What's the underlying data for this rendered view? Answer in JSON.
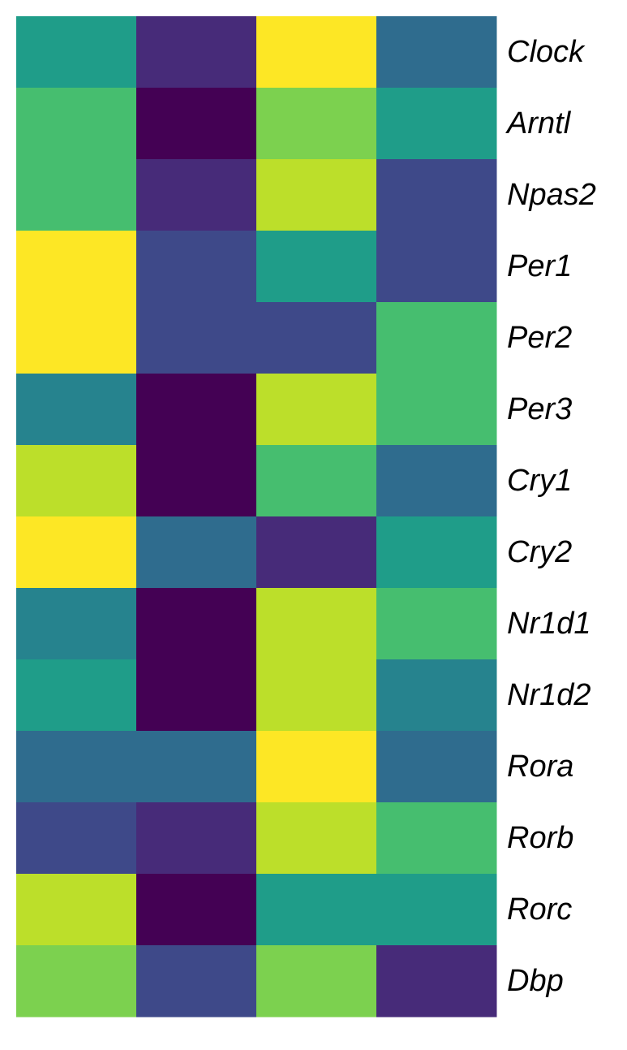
{
  "chart_data": {
    "type": "heatmap",
    "rows": [
      "Clock",
      "Arntl",
      "Npas2",
      "Per1",
      "Per2",
      "Per3",
      "Cry1",
      "Cry2",
      "Nr1d1",
      "Nr1d2",
      "Rora",
      "Rorb",
      "Rorc",
      "Dbp"
    ],
    "columns": [
      "",
      "",
      "",
      ""
    ],
    "values": [
      [
        0.55,
        0.12,
        1.0,
        0.35
      ],
      [
        0.7,
        0.0,
        0.8,
        0.55
      ],
      [
        0.7,
        0.12,
        0.9,
        0.22
      ],
      [
        1.0,
        0.22,
        0.55,
        0.22
      ],
      [
        1.0,
        0.22,
        0.22,
        0.7
      ],
      [
        0.45,
        0.0,
        0.9,
        0.7
      ],
      [
        0.9,
        0.0,
        0.7,
        0.35
      ],
      [
        1.0,
        0.35,
        0.12,
        0.55
      ],
      [
        0.45,
        0.0,
        0.9,
        0.7
      ],
      [
        0.55,
        0.0,
        0.9,
        0.45
      ],
      [
        0.35,
        0.35,
        1.0,
        0.35
      ],
      [
        0.22,
        0.12,
        0.9,
        0.7
      ],
      [
        0.9,
        0.0,
        0.55,
        0.55
      ],
      [
        0.8,
        0.22,
        0.8,
        0.12
      ]
    ],
    "value_range": [
      0,
      1
    ],
    "colormap": "viridis",
    "colorscale": [
      "#440154",
      "#482878",
      "#3e4a89",
      "#31688e",
      "#26828e",
      "#1f9e89",
      "#35b779",
      "#6ece58",
      "#b5de2b",
      "#fde725"
    ],
    "legend": false,
    "grid": false
  }
}
